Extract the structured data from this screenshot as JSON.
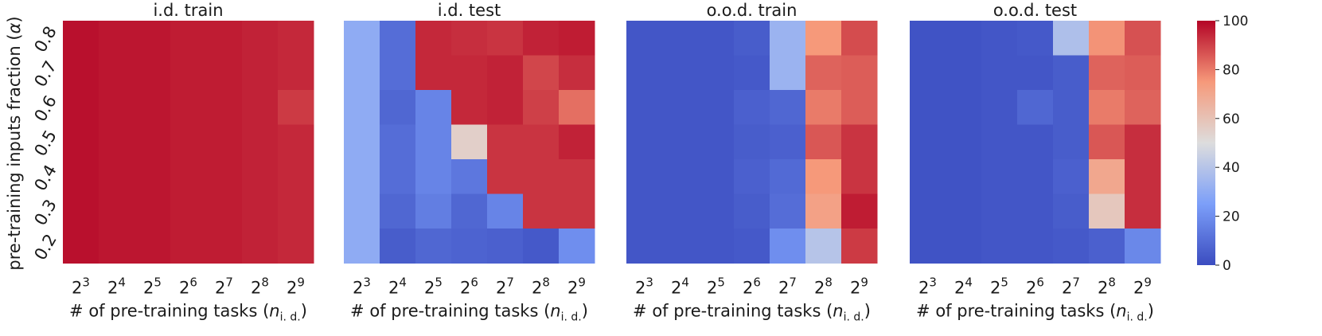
{
  "chart_data": {
    "type": "heatmap",
    "colormap": "coolwarm",
    "color_range": [
      0,
      100
    ],
    "colorbar": {
      "ticks": [
        "0",
        "20",
        "40",
        "60",
        "80",
        "100"
      ]
    },
    "ylabel_text": "pre-training inputs fraction (",
    "ylabel_symbol": "α",
    "ylabel_close": ")",
    "y_ticks": [
      "0.8",
      "0.7",
      "0.6",
      "0.5",
      "0.4",
      "0.3",
      "0.2"
    ],
    "x_tick_base": "2",
    "x_tick_exponents": [
      "3",
      "4",
      "5",
      "6",
      "7",
      "8",
      "9"
    ],
    "xlabel_text": "# of pre-training tasks (",
    "xlabel_symbol": "n",
    "xlabel_subscript": "i. d.",
    "xlabel_close": ")",
    "panels": [
      {
        "title": "i.d. train",
        "values": [
          [
            98,
            97,
            97,
            96,
            96,
            95,
            94
          ],
          [
            98,
            97,
            97,
            96,
            96,
            95,
            94
          ],
          [
            98,
            97,
            97,
            96,
            96,
            95,
            91
          ],
          [
            98,
            97,
            97,
            96,
            96,
            95,
            94
          ],
          [
            98,
            97,
            97,
            96,
            96,
            95,
            94
          ],
          [
            98,
            97,
            97,
            96,
            96,
            95,
            94
          ],
          [
            98,
            97,
            97,
            96,
            96,
            95,
            94
          ]
        ]
      },
      {
        "title": "i.d. test",
        "values": [
          [
            30,
            10,
            94,
            93,
            92,
            95,
            96
          ],
          [
            30,
            10,
            94,
            94,
            95,
            89,
            93
          ],
          [
            30,
            8,
            17,
            94,
            95,
            90,
            82
          ],
          [
            30,
            10,
            17,
            55,
            92,
            92,
            95
          ],
          [
            30,
            10,
            17,
            13,
            92,
            92,
            92
          ],
          [
            30,
            8,
            15,
            8,
            17,
            92,
            92
          ],
          [
            30,
            5,
            8,
            7,
            6,
            4,
            20
          ]
        ]
      },
      {
        "title": "o.o.d. train",
        "values": [
          [
            3,
            3,
            3,
            5,
            33,
            75,
            88
          ],
          [
            3,
            3,
            3,
            4,
            33,
            84,
            85
          ],
          [
            3,
            3,
            3,
            6,
            8,
            80,
            85
          ],
          [
            3,
            3,
            3,
            5,
            6,
            86,
            92
          ],
          [
            3,
            3,
            3,
            6,
            9,
            75,
            92
          ],
          [
            3,
            3,
            3,
            5,
            10,
            72,
            96
          ],
          [
            3,
            3,
            3,
            4,
            20,
            40,
            91
          ]
        ]
      },
      {
        "title": "o.o.d. test",
        "values": [
          [
            2,
            2,
            3,
            4,
            38,
            76,
            87
          ],
          [
            2,
            2,
            3,
            3,
            5,
            84,
            85
          ],
          [
            2,
            2,
            3,
            8,
            5,
            80,
            84
          ],
          [
            2,
            2,
            3,
            3,
            5,
            86,
            93
          ],
          [
            2,
            2,
            3,
            3,
            6,
            70,
            93
          ],
          [
            2,
            2,
            3,
            3,
            5,
            58,
            93
          ],
          [
            2,
            2,
            3,
            3,
            4,
            6,
            18
          ]
        ]
      }
    ]
  }
}
